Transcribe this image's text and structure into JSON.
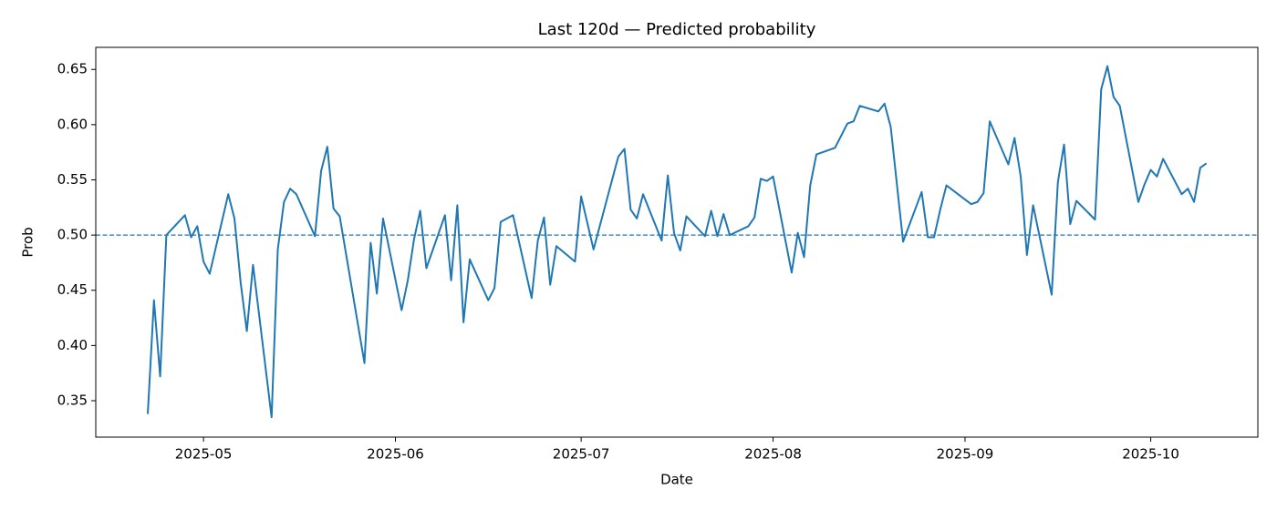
{
  "chart_data": {
    "type": "line",
    "title": "Last 120d — Predicted probability",
    "x_label": "Date",
    "y_label": "Prob",
    "x": [
      20200,
      20201,
      20202,
      20203,
      20206,
      20207,
      20208,
      20209,
      20210,
      20213,
      20214,
      20215,
      20216,
      20217,
      20220,
      20221,
      20222,
      20223,
      20224,
      20227,
      20228,
      20229,
      20230,
      20231,
      20235,
      20236,
      20237,
      20238,
      20241,
      20242,
      20243,
      20244,
      20245,
      20248,
      20249,
      20250,
      20251,
      20252,
      20255,
      20256,
      20257,
      20259,
      20262,
      20263,
      20264,
      20265,
      20266,
      20269,
      20270,
      20272,
      20276,
      20277,
      20278,
      20279,
      20280,
      20283,
      20284,
      20285,
      20286,
      20287,
      20290,
      20291,
      20292,
      20293,
      20294,
      20297,
      20298,
      20299,
      20300,
      20301,
      20304,
      20305,
      20306,
      20307,
      20308,
      20311,
      20313,
      20314,
      20315,
      20318,
      20319,
      20320,
      20322,
      20325,
      20326,
      20327,
      20328,
      20329,
      20333,
      20334,
      20335,
      20336,
      20339,
      20340,
      20341,
      20342,
      20343,
      20346,
      20347,
      20348,
      20349,
      20350,
      20353,
      20354,
      20355,
      20356,
      20357,
      20360,
      20361,
      20362,
      20363,
      20364,
      20367,
      20368,
      20369,
      20370,
      20371
    ],
    "series": [
      {
        "name": "Prob",
        "color": "#1f77b4",
        "values": [
          0.338,
          0.441,
          0.372,
          0.5,
          0.518,
          0.498,
          0.508,
          0.476,
          0.465,
          0.537,
          0.515,
          0.457,
          0.413,
          0.473,
          0.335,
          0.487,
          0.53,
          0.542,
          0.537,
          0.499,
          0.558,
          0.58,
          0.524,
          0.517,
          0.384,
          0.493,
          0.447,
          0.515,
          0.432,
          0.459,
          0.496,
          0.522,
          0.47,
          0.518,
          0.459,
          0.527,
          0.421,
          0.478,
          0.441,
          0.452,
          0.512,
          0.518,
          0.443,
          0.495,
          0.516,
          0.455,
          0.49,
          0.476,
          0.535,
          0.487,
          0.571,
          0.578,
          0.523,
          0.515,
          0.537,
          0.495,
          0.554,
          0.502,
          0.486,
          0.517,
          0.499,
          0.522,
          0.499,
          0.519,
          0.5,
          0.508,
          0.516,
          0.551,
          0.549,
          0.553,
          0.466,
          0.502,
          0.48,
          0.545,
          0.573,
          0.579,
          0.601,
          0.603,
          0.617,
          0.612,
          0.619,
          0.598,
          0.494,
          0.539,
          0.498,
          0.498,
          0.523,
          0.545,
          0.528,
          0.53,
          0.538,
          0.603,
          0.564,
          0.588,
          0.553,
          0.482,
          0.527,
          0.446,
          0.548,
          0.582,
          0.51,
          0.531,
          0.514,
          0.632,
          0.653,
          0.625,
          0.617,
          0.53,
          0.546,
          0.559,
          0.553,
          0.569,
          0.537,
          0.542,
          0.53,
          0.561,
          0.565
        ]
      }
    ],
    "hline": {
      "value": 0.5,
      "color": "#1f77b4",
      "style": "dashed"
    },
    "xlim": [
      20191.6,
      20379.3
    ],
    "xticks": [
      {
        "value": 20209,
        "label": "2025-05"
      },
      {
        "value": 20240,
        "label": "2025-06"
      },
      {
        "value": 20270,
        "label": "2025-07"
      },
      {
        "value": 20301,
        "label": "2025-08"
      },
      {
        "value": 20332,
        "label": "2025-09"
      },
      {
        "value": 20362,
        "label": "2025-10"
      }
    ],
    "ylim": [
      0.317,
      0.67
    ],
    "yticks": [
      {
        "value": 0.35,
        "label": "0.35"
      },
      {
        "value": 0.4,
        "label": "0.40"
      },
      {
        "value": 0.45,
        "label": "0.45"
      },
      {
        "value": 0.5,
        "label": "0.50"
      },
      {
        "value": 0.55,
        "label": "0.55"
      },
      {
        "value": 0.6,
        "label": "0.60"
      },
      {
        "value": 0.65,
        "label": "0.65"
      }
    ],
    "grid": false
  }
}
